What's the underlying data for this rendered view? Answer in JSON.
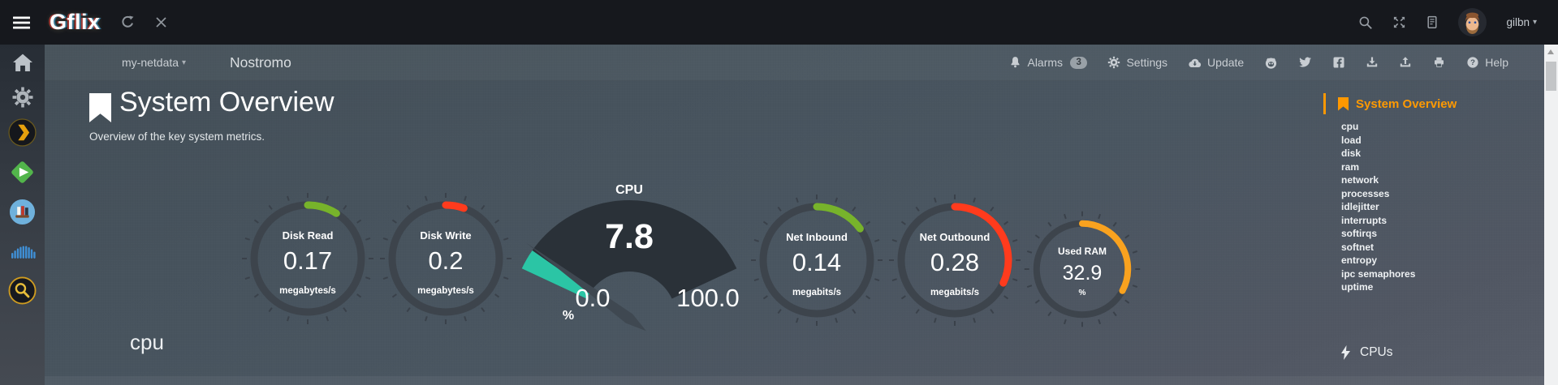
{
  "topbar": {
    "brand": "Gflix",
    "user": {
      "name": "gilbn"
    },
    "icons": [
      "menu-icon",
      "refresh-icon",
      "close-icon",
      "search-icon",
      "fullscreen-icon",
      "changelog-icon",
      "avatar",
      "caret-down-icon"
    ]
  },
  "navbar": {
    "host_selector": {
      "label": "my-netdata"
    },
    "node_name": "Nostromo",
    "alarms": {
      "label": "Alarms",
      "badge": "3"
    },
    "settings": {
      "label": "Settings"
    },
    "update": {
      "label": "Update"
    },
    "help": {
      "label": "Help"
    },
    "icons": [
      "bell-icon",
      "gear-icon",
      "cloud-download-icon",
      "github-icon",
      "twitter-icon",
      "facebook-icon",
      "import-icon",
      "export-icon",
      "print-icon",
      "help-icon"
    ]
  },
  "app_sidebar": {
    "apps": [
      "home",
      "settings",
      "plex",
      "emby",
      "library",
      "soundcloud",
      "indexer-search"
    ]
  },
  "content": {
    "section_title": "System Overview",
    "section_subtitle": "Overview of the key system metrics.",
    "next_section_heading": "cpu"
  },
  "toc": {
    "active": {
      "label": "System Overview"
    },
    "items": [
      "cpu",
      "load",
      "disk",
      "ram",
      "network",
      "processes",
      "idlejitter",
      "interrupts",
      "softirqs",
      "softnet",
      "entropy",
      "ipc semaphores",
      "uptime"
    ],
    "sections": [
      {
        "label": "CPUs"
      }
    ]
  },
  "chart_data": [
    {
      "type": "gauge",
      "label": "Disk Read",
      "value": "0.17",
      "units": "megabytes/s",
      "fraction": 0.09,
      "color": "#77b32b"
    },
    {
      "type": "gauge",
      "label": "Disk Write",
      "value": "0.2",
      "units": "megabytes/s",
      "fraction": 0.055,
      "color": "#ff3b1d"
    },
    {
      "type": "meter-gauge",
      "label": "CPU",
      "value": "7.8",
      "units": "%",
      "min": "0.0",
      "max": "100.0",
      "fraction": 0.078,
      "color": "#2bc5a5"
    },
    {
      "type": "gauge",
      "label": "Net Inbound",
      "value": "0.14",
      "units": "megabits/s",
      "fraction": 0.15,
      "color": "#77b32b"
    },
    {
      "type": "gauge",
      "label": "Net Outbound",
      "value": "0.28",
      "units": "megabits/s",
      "fraction": 0.32,
      "color": "#ff3b1d"
    },
    {
      "type": "gauge",
      "label": "Used RAM",
      "value": "32.9",
      "units": "%",
      "fraction": 0.329,
      "color": "#f9a21f"
    }
  ],
  "colors": {
    "accent_orange": "#ff9800",
    "gauge_green": "#77b32b",
    "gauge_red": "#ff3b1d",
    "gauge_teal": "#2bc5a5",
    "gauge_orange": "#f9a21f",
    "topbar_bg": "#16181d",
    "content_bg": "#4a5661"
  }
}
